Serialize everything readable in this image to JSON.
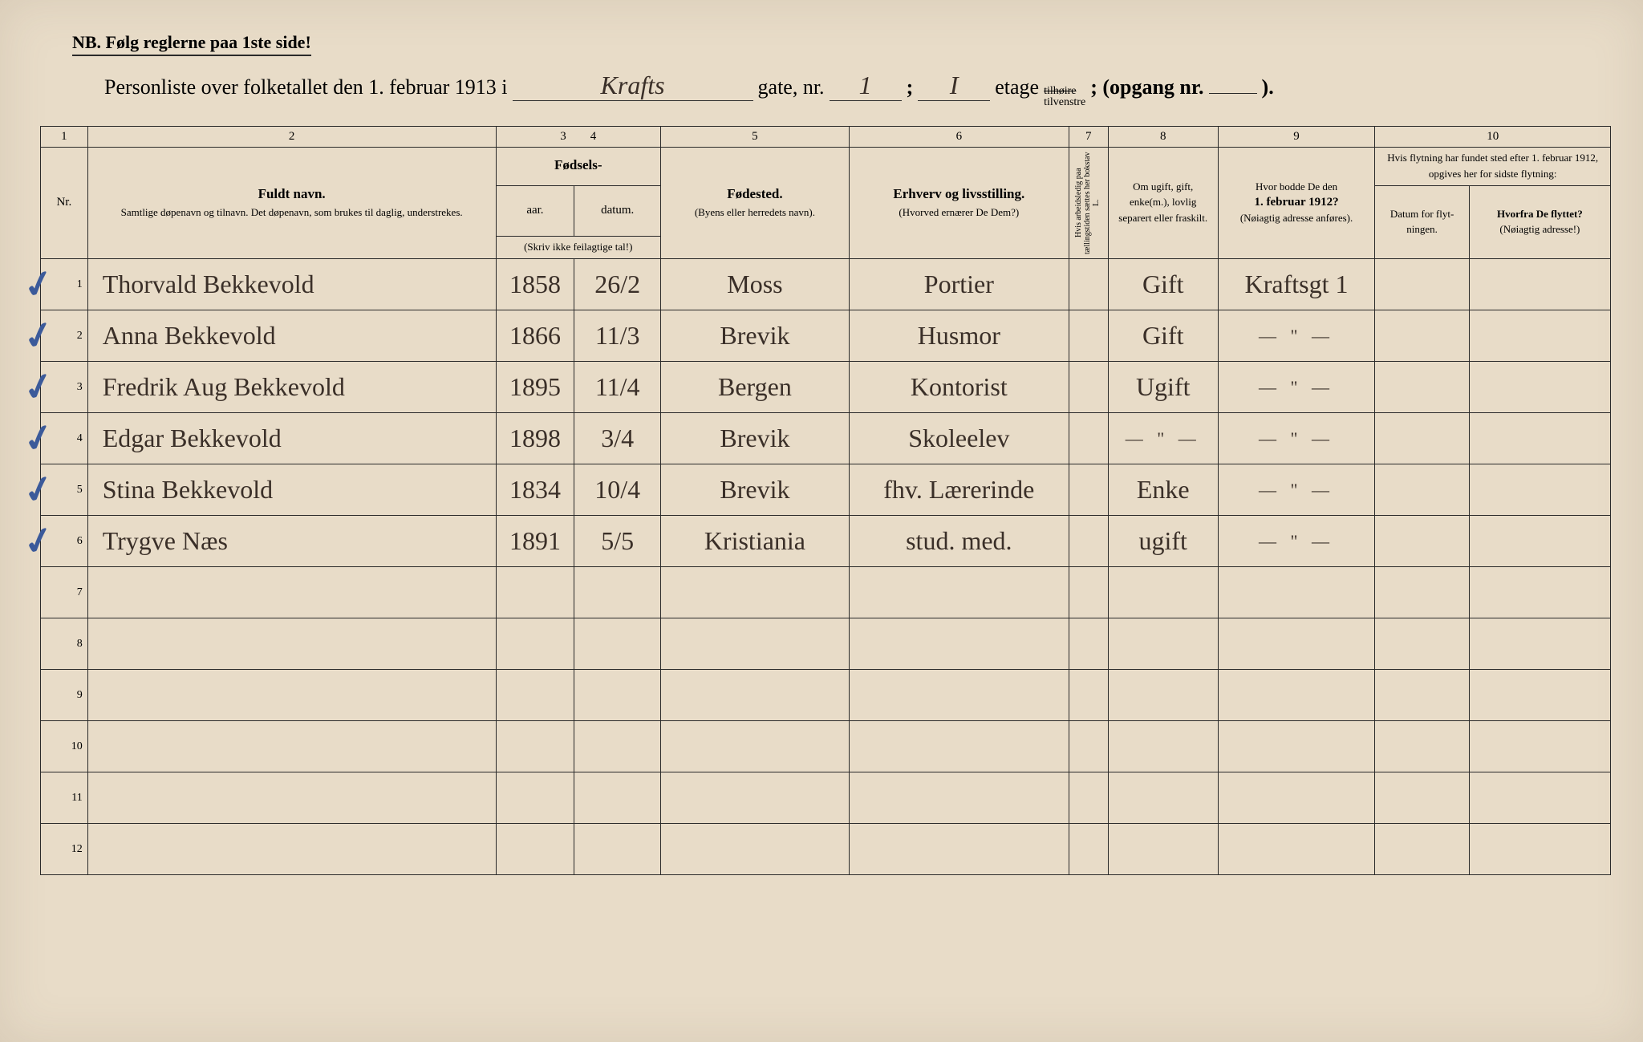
{
  "page": {
    "background_color": "#e8dcc8",
    "ink_color": "#2a2a2a",
    "handwriting_color": "#3a2f28",
    "checkmark_color": "#3b5a9a"
  },
  "header": {
    "nb_text": "NB.  Følg reglerne paa 1ste side!",
    "title_prefix": "Personliste over folketallet den 1. februar 1913 i",
    "street_handwritten": "Krafts",
    "gate_label": "gate, nr.",
    "gate_nr": "1",
    "semicolon": ";",
    "etage_nr": "I",
    "etage_label": "etage",
    "tilhoire": "tilhøire",
    "tilvenstre": "tilvenstre",
    "opgang_label": "; (opgang nr.",
    "opgang_nr": "",
    "closing": ")."
  },
  "columns": {
    "numbers": [
      "1",
      "2",
      "3",
      "4",
      "5",
      "6",
      "7",
      "8",
      "9",
      "10"
    ],
    "c1": "Nr.",
    "c2_bold": "Fuldt navn.",
    "c2_small": "Samtlige døpenavn og tilnavn. Det døpenavn, som brukes til daglig, understrekes.",
    "c34_group": "Fødsels-",
    "c3": "aar.",
    "c4": "datum.",
    "c34_note": "(Skriv ikke feilagtige tal!)",
    "c5_bold": "Fødested.",
    "c5_small": "(Byens eller herredets navn).",
    "c6_bold": "Erhverv og livsstilling.",
    "c6_small": "(Hvorved ernærer De Dem?)",
    "c7": "Hvis arbeidsledig paa tællingstiden sættes her bokstav L.",
    "c8": "Om ugift, gift, enke(m.), lovlig separert eller fraskilt.",
    "c9_a": "Hvor bodde De den",
    "c9_b": "1. februar 1912?",
    "c9_c": "(Nøiagtig adresse anføres).",
    "c10_top": "Hvis flytning har fundet sted efter 1. februar 1912, opgives her for sidste flytning:",
    "c10a": "Datum for flyt-ningen.",
    "c10b_a": "Hvorfra De flyttet?",
    "c10b_b": "(Nøiagtig adresse!)"
  },
  "rows": [
    {
      "nr": "1",
      "check": true,
      "name": "Thorvald Bekkevold",
      "year": "1858",
      "date": "26/2",
      "birthplace": "Moss",
      "occupation": "Portier",
      "col7": "",
      "status": "Gift",
      "addr1912": "Kraftsgt 1",
      "movedate": "",
      "movefrom": ""
    },
    {
      "nr": "2",
      "check": true,
      "name": "Anna Bekkevold",
      "year": "1866",
      "date": "11/3",
      "birthplace": "Brevik",
      "occupation": "Husmor",
      "col7": "",
      "status": "Gift",
      "addr1912": "— \" —",
      "movedate": "",
      "movefrom": ""
    },
    {
      "nr": "3",
      "check": true,
      "name": "Fredrik Aug Bekkevold",
      "year": "1895",
      "date": "11/4",
      "birthplace": "Bergen",
      "occupation": "Kontorist",
      "col7": "",
      "status": "Ugift",
      "addr1912": "— \" —",
      "movedate": "",
      "movefrom": ""
    },
    {
      "nr": "4",
      "check": true,
      "name": "Edgar Bekkevold",
      "year": "1898",
      "date": "3/4",
      "birthplace": "Brevik",
      "occupation": "Skoleelev",
      "col7": "",
      "status": "— \" —",
      "addr1912": "— \" —",
      "movedate": "",
      "movefrom": ""
    },
    {
      "nr": "5",
      "check": true,
      "name": "Stina Bekkevold",
      "year": "1834",
      "date": "10/4",
      "birthplace": "Brevik",
      "occupation": "fhv. Lærerinde",
      "col7": "",
      "status": "Enke",
      "addr1912": "— \" —",
      "movedate": "",
      "movefrom": ""
    },
    {
      "nr": "6",
      "check": true,
      "name": "Trygve Næs",
      "year": "1891",
      "date": "5/5",
      "birthplace": "Kristiania",
      "occupation": "stud. med.",
      "col7": "",
      "status": "ugift",
      "addr1912": "— \" —",
      "movedate": "",
      "movefrom": ""
    },
    {
      "nr": "7",
      "check": false,
      "name": "",
      "year": "",
      "date": "",
      "birthplace": "",
      "occupation": "",
      "col7": "",
      "status": "",
      "addr1912": "",
      "movedate": "",
      "movefrom": ""
    },
    {
      "nr": "8",
      "check": false,
      "name": "",
      "year": "",
      "date": "",
      "birthplace": "",
      "occupation": "",
      "col7": "",
      "status": "",
      "addr1912": "",
      "movedate": "",
      "movefrom": ""
    },
    {
      "nr": "9",
      "check": false,
      "name": "",
      "year": "",
      "date": "",
      "birthplace": "",
      "occupation": "",
      "col7": "",
      "status": "",
      "addr1912": "",
      "movedate": "",
      "movefrom": ""
    },
    {
      "nr": "10",
      "check": false,
      "name": "",
      "year": "",
      "date": "",
      "birthplace": "",
      "occupation": "",
      "col7": "",
      "status": "",
      "addr1912": "",
      "movedate": "",
      "movefrom": ""
    },
    {
      "nr": "11",
      "check": false,
      "name": "",
      "year": "",
      "date": "",
      "birthplace": "",
      "occupation": "",
      "col7": "",
      "status": "",
      "addr1912": "",
      "movedate": "",
      "movefrom": ""
    },
    {
      "nr": "12",
      "check": false,
      "name": "",
      "year": "",
      "date": "",
      "birthplace": "",
      "occupation": "",
      "col7": "",
      "status": "",
      "addr1912": "",
      "movedate": "",
      "movefrom": ""
    }
  ]
}
